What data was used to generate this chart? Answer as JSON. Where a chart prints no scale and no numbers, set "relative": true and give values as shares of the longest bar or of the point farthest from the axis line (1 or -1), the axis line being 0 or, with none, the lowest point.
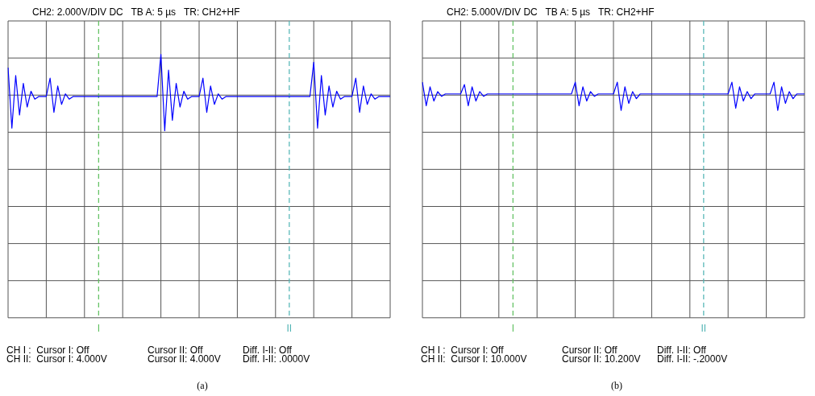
{
  "chart_data": [
    {
      "type": "line",
      "title": "CH2: 2.000V/DIV DC   TB A: 5 µs   TR: CH2+HF",
      "relative": true,
      "grid": true,
      "marker": "none",
      "categories": [
        null,
        null,
        null,
        null,
        null,
        null,
        null,
        null,
        null,
        null,
        null,
        null,
        null,
        null,
        null,
        null,
        null,
        null,
        null,
        null,
        null,
        null,
        null,
        null,
        null,
        null,
        null,
        null,
        null,
        null,
        null,
        null,
        null,
        null,
        null,
        null,
        null,
        null,
        null,
        null,
        null,
        null,
        null,
        null,
        null,
        null,
        null,
        null,
        null,
        null,
        null,
        null,
        null,
        null,
        null,
        null,
        null,
        null,
        null,
        null,
        null,
        null,
        null,
        null,
        null,
        null,
        null,
        null,
        null,
        null,
        null,
        null,
        null,
        null,
        null,
        null,
        null,
        null,
        null,
        null,
        null,
        null,
        null,
        null,
        null,
        null,
        null,
        null,
        null,
        null,
        null,
        null,
        null,
        null,
        null,
        null,
        null,
        null,
        null,
        null,
        null
      ],
      "series": [
        {
          "color": "#0000ff",
          "values": [
            0.95,
            0.72,
            0.92,
            0.77,
            0.89,
            0.8,
            0.86,
            0.83,
            0.84,
            0.84,
            0.84,
            0.91,
            0.78,
            0.88,
            0.81,
            0.85,
            0.83,
            0.84,
            0.84,
            0.84,
            0.84,
            0.84,
            0.84,
            0.84,
            0.84,
            0.84,
            0.84,
            0.84,
            0.84,
            0.84,
            0.84,
            0.84,
            0.84,
            0.84,
            0.84,
            0.84,
            0.84,
            0.84,
            0.84,
            0.84,
            1.0,
            0.71,
            0.94,
            0.75,
            0.89,
            0.8,
            0.86,
            0.83,
            0.84,
            0.84,
            0.84,
            0.91,
            0.78,
            0.88,
            0.81,
            0.85,
            0.83,
            0.84,
            0.84,
            0.84,
            0.84,
            0.84,
            0.84,
            0.84,
            0.84,
            0.84,
            0.84,
            0.84,
            0.84,
            0.84,
            0.84,
            0.84,
            0.84,
            0.84,
            0.84,
            0.84,
            0.84,
            0.84,
            0.84,
            0.84,
            0.97,
            0.72,
            0.92,
            0.77,
            0.88,
            0.8,
            0.86,
            0.83,
            0.84,
            0.84,
            0.84,
            0.91,
            0.78,
            0.88,
            0.81,
            0.85,
            0.83,
            0.84,
            0.84,
            0.84,
            0.84
          ]
        }
      ],
      "annotations": [
        "I",
        "II",
        "CH I :  Cursor I: Off",
        "Cursor II: Off",
        "Diff. I-II: Off",
        "CH II:  Cursor I: 4.000V",
        "Cursor II: 4.000V",
        "Diff. I-II: .0000V",
        "(a)"
      ]
    },
    {
      "type": "line",
      "title": "CH2: 5.000V/DIV DC   TB A: 5 µs   TR: CH2+HF",
      "relative": true,
      "grid": true,
      "marker": "none",
      "categories": [
        null,
        null,
        null,
        null,
        null,
        null,
        null,
        null,
        null,
        null,
        null,
        null,
        null,
        null,
        null,
        null,
        null,
        null,
        null,
        null,
        null,
        null,
        null,
        null,
        null,
        null,
        null,
        null,
        null,
        null,
        null,
        null,
        null,
        null,
        null,
        null,
        null,
        null,
        null,
        null,
        null,
        null,
        null,
        null,
        null,
        null,
        null,
        null,
        null,
        null,
        null,
        null,
        null,
        null,
        null,
        null,
        null,
        null,
        null,
        null,
        null,
        null,
        null,
        null,
        null,
        null,
        null,
        null,
        null,
        null,
        null,
        null,
        null,
        null,
        null,
        null,
        null,
        null,
        null,
        null,
        null,
        null,
        null,
        null,
        null,
        null,
        null,
        null,
        null,
        null,
        null,
        null,
        null,
        null,
        null,
        null,
        null,
        null,
        null,
        null,
        null
      ],
      "series": [
        {
          "color": "#0000ff",
          "values": [
            1.0,
            0.9,
            0.98,
            0.92,
            0.96,
            0.94,
            0.95,
            0.95,
            0.95,
            0.95,
            0.95,
            0.99,
            0.9,
            0.98,
            0.92,
            0.96,
            0.94,
            0.95,
            0.95,
            0.95,
            0.95,
            0.95,
            0.95,
            0.95,
            0.95,
            0.95,
            0.95,
            0.95,
            0.95,
            0.95,
            0.95,
            0.95,
            0.95,
            0.95,
            0.95,
            0.95,
            0.95,
            0.95,
            0.95,
            0.95,
            1.0,
            0.9,
            0.98,
            0.92,
            0.96,
            0.94,
            0.95,
            0.95,
            0.95,
            0.95,
            0.95,
            1.0,
            0.88,
            0.98,
            0.91,
            0.96,
            0.93,
            0.95,
            0.95,
            0.95,
            0.95,
            0.95,
            0.95,
            0.95,
            0.95,
            0.95,
            0.95,
            0.95,
            0.95,
            0.95,
            0.95,
            0.95,
            0.95,
            0.95,
            0.95,
            0.95,
            0.95,
            0.95,
            0.95,
            0.95,
            0.95,
            1.0,
            0.89,
            0.98,
            0.92,
            0.96,
            0.93,
            0.95,
            0.95,
            0.95,
            0.95,
            0.95,
            1.0,
            0.88,
            0.98,
            0.91,
            0.96,
            0.93,
            0.95,
            0.95,
            0.95
          ]
        }
      ],
      "annotations": [
        "I",
        "II",
        "CH I :  Cursor I: Off",
        "Cursor II: Off",
        "Diff. I-II: Off",
        "CH II:  Cursor I: 10.000V",
        "Cursor II: 10.200V",
        "Diff. I-II: -.2000V",
        "(b)"
      ]
    }
  ]
}
